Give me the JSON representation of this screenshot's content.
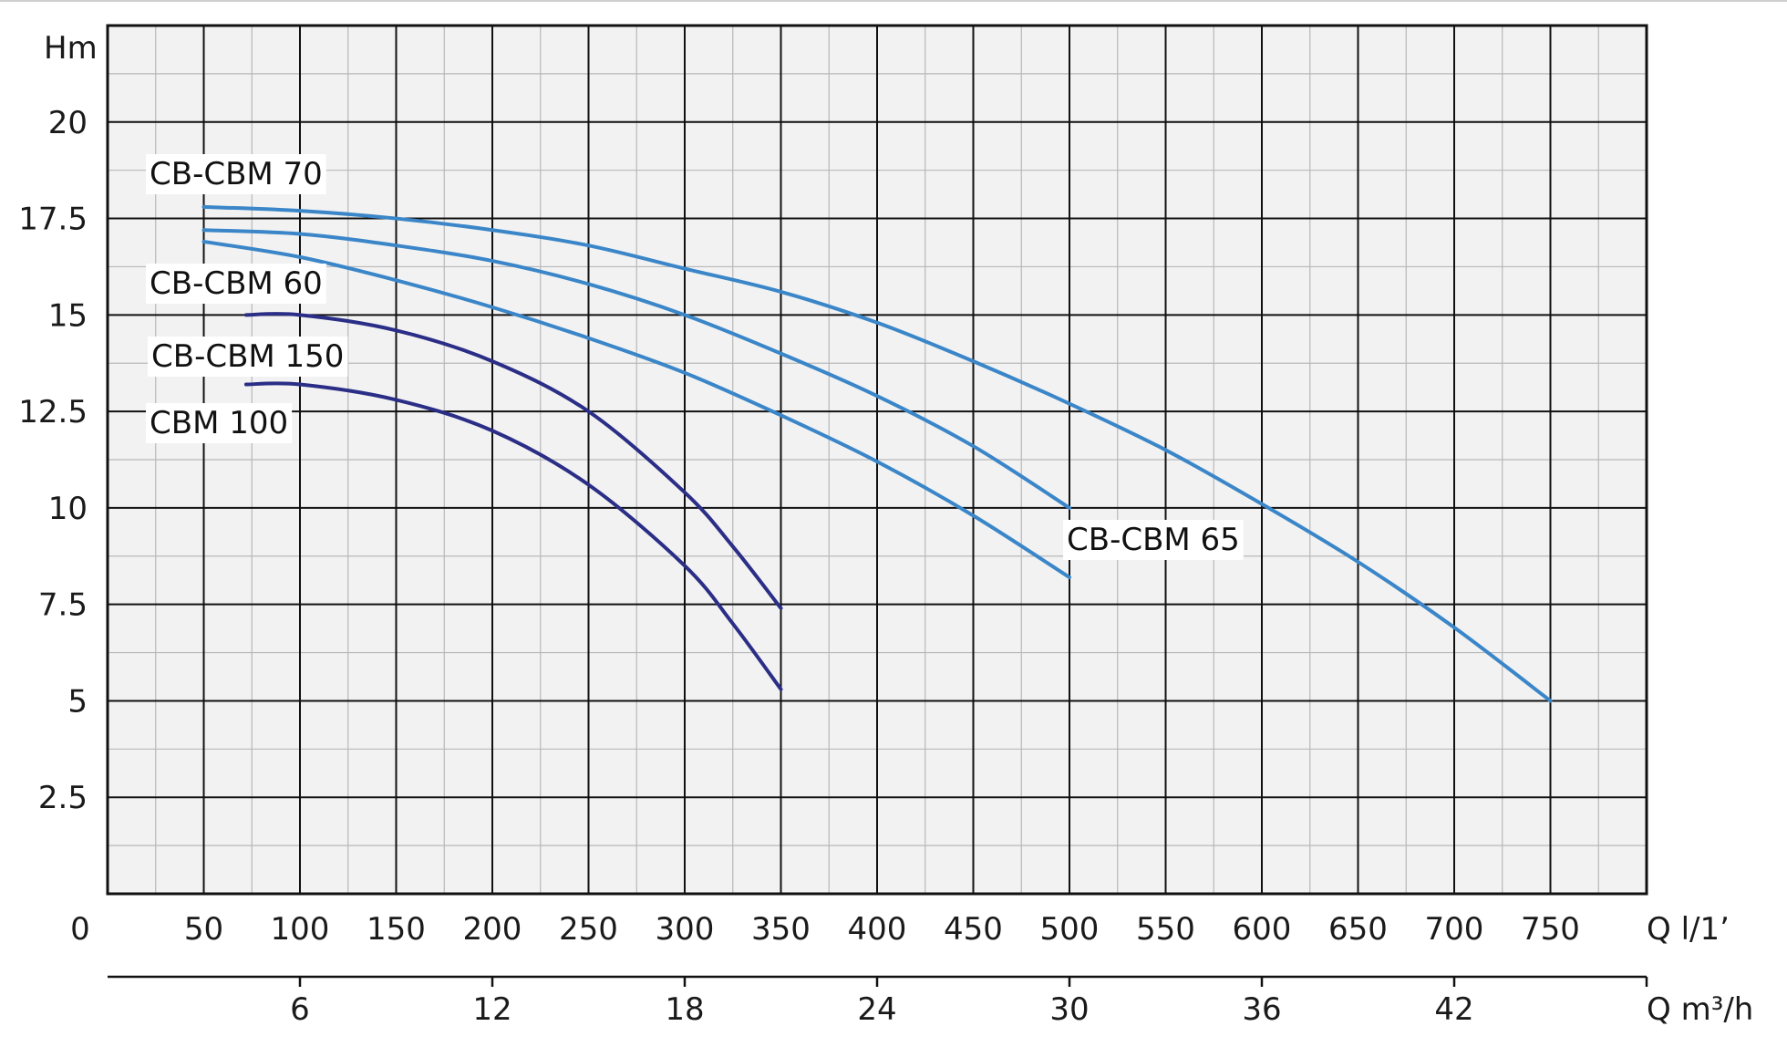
{
  "chart_data": {
    "type": "line",
    "title": "",
    "ylabel": "Hm",
    "xlabel": "Q l/1’",
    "x2label": "Q m³/h",
    "origin_label": "0",
    "xlim": [
      0,
      800
    ],
    "ylim": [
      0,
      22.5
    ],
    "x_ticks": [
      50,
      100,
      150,
      200,
      250,
      300,
      350,
      400,
      450,
      500,
      550,
      600,
      650,
      700,
      750
    ],
    "x_tick_labels": [
      "50",
      "100",
      "150",
      "200",
      "250",
      "300",
      "350",
      "400",
      "450",
      "500",
      "550",
      "600",
      "650",
      "700",
      "750"
    ],
    "x2_ticks": [
      6,
      12,
      18,
      24,
      30,
      36,
      42
    ],
    "x2_tick_labels": [
      "6",
      "12",
      "18",
      "24",
      "30",
      "36",
      "42"
    ],
    "y_ticks": [
      2.5,
      5,
      7.5,
      10,
      12.5,
      15,
      17.5,
      20
    ],
    "y_tick_labels": [
      "2.5",
      "5",
      "7.5",
      "10",
      "12.5",
      "15",
      "17.5",
      "20"
    ],
    "grid": true,
    "colors": {
      "light_series": "#3a86c8",
      "dark_series": "#2b2e86",
      "plot_background": "#f2f2f2",
      "grid_major": "#111111",
      "grid_minor": "#b8b8b8"
    },
    "series": [
      {
        "name": "CB-CBM 70",
        "color": "#3a86c8",
        "x": [
          50,
          100,
          150,
          200,
          250,
          300,
          350,
          400,
          450,
          500,
          550,
          600,
          650,
          700,
          750
        ],
        "y": [
          17.8,
          17.7,
          17.5,
          17.2,
          16.8,
          16.2,
          15.6,
          14.8,
          13.8,
          12.7,
          11.5,
          10.1,
          8.6,
          6.9,
          5.0
        ]
      },
      {
        "name": "CB-CBM 65",
        "color": "#3a86c8",
        "x": [
          50,
          100,
          150,
          200,
          250,
          300,
          350,
          400,
          450,
          500
        ],
        "y": [
          17.2,
          17.1,
          16.8,
          16.4,
          15.8,
          15.0,
          14.0,
          12.9,
          11.6,
          10.0
        ]
      },
      {
        "name": "CB-CBM 60",
        "color": "#3a86c8",
        "x": [
          50,
          100,
          150,
          200,
          250,
          300,
          350,
          400,
          450,
          500
        ],
        "y": [
          16.9,
          16.5,
          15.9,
          15.2,
          14.4,
          13.5,
          12.4,
          11.2,
          9.8,
          8.2
        ]
      },
      {
        "name": "CB-CBM 150",
        "color": "#2b2e86",
        "x": [
          72,
          100,
          150,
          200,
          250,
          300,
          325,
          350
        ],
        "y": [
          15.0,
          15.0,
          14.6,
          13.8,
          12.5,
          10.4,
          9.0,
          7.4
        ]
      },
      {
        "name": "CBM 100",
        "color": "#2b2e86",
        "x": [
          72,
          100,
          150,
          200,
          250,
          300,
          325,
          350
        ],
        "y": [
          13.2,
          13.2,
          12.8,
          12.0,
          10.6,
          8.5,
          7.0,
          5.3
        ]
      }
    ]
  }
}
